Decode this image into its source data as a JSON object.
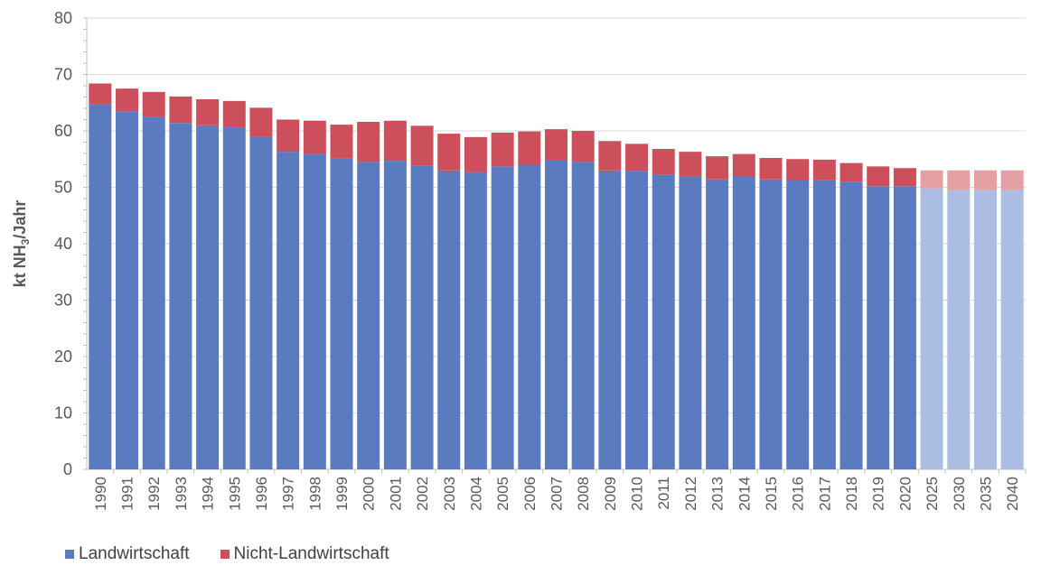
{
  "chart_data": {
    "type": "bar",
    "stacked": true,
    "ylabel": "kt NH3/Jahr",
    "ylabel_main": "kt NH",
    "ylabel_sub": "3",
    "ylabel_rest": "/Jahr",
    "ylim": [
      0,
      80
    ],
    "yticks": [
      0,
      10,
      20,
      30,
      40,
      50,
      60,
      70,
      80
    ],
    "grid": true,
    "legend_position": "bottom-left",
    "categories": [
      "1990",
      "1991",
      "1992",
      "1993",
      "1994",
      "1995",
      "1996",
      "1997",
      "1998",
      "1999",
      "2000",
      "2001",
      "2002",
      "2003",
      "2004",
      "2005",
      "2006",
      "2007",
      "2008",
      "2009",
      "2010",
      "2011",
      "2012",
      "2013",
      "2014",
      "2015",
      "2016",
      "2017",
      "2018",
      "2019",
      "2020",
      "2025",
      "2030",
      "2035",
      "2040"
    ],
    "projection_categories": [
      "2025",
      "2030",
      "2035",
      "2040"
    ],
    "series": [
      {
        "name": "Landwirtschaft",
        "color": "#5b7bc0",
        "projection_color": "#abbde2",
        "values": [
          64.7,
          63.4,
          62.5,
          61.4,
          61.0,
          60.5,
          58.9,
          56.3,
          55.9,
          55.1,
          54.5,
          54.7,
          53.9,
          53.0,
          52.7,
          53.7,
          54.0,
          54.8,
          54.5,
          53.0,
          52.9,
          52.3,
          51.9,
          51.4,
          52.0,
          51.4,
          51.2,
          51.3,
          51.0,
          50.2,
          50.2,
          49.8,
          49.5,
          49.5,
          49.5
        ]
      },
      {
        "name": "Nicht-Landwirtschaft",
        "color": "#cc4f5b",
        "projection_color": "#e3a1a4",
        "values": [
          3.7,
          4.1,
          4.4,
          4.7,
          4.6,
          4.8,
          5.2,
          5.7,
          5.9,
          6.0,
          7.1,
          7.1,
          7.0,
          6.5,
          6.2,
          6.0,
          5.9,
          5.5,
          5.5,
          5.2,
          4.8,
          4.5,
          4.4,
          4.1,
          3.9,
          3.8,
          3.8,
          3.6,
          3.3,
          3.5,
          3.2,
          3.2,
          3.5,
          3.5,
          3.5
        ]
      }
    ]
  }
}
